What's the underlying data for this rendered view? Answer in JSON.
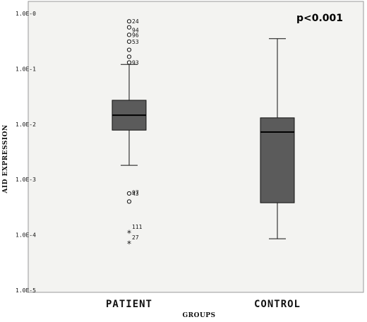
{
  "chart_data": {
    "type": "boxplot",
    "xlabel": "GROUPS",
    "ylabel": "AID EXPRESSION",
    "yscale": "log",
    "ylim": [
      1e-05,
      1
    ],
    "yticks": [
      {
        "value": 1,
        "label": "1.0E-0"
      },
      {
        "value": 0.1,
        "label": "1.0E-1"
      },
      {
        "value": 0.01,
        "label": "1.0E-2"
      },
      {
        "value": 0.001,
        "label": "1.0E-3"
      },
      {
        "value": 0.0001,
        "label": "1.0E-4"
      },
      {
        "value": 1e-05,
        "label": "1.0E-5"
      }
    ],
    "annotation": "p<0.001",
    "categories": [
      "PATIENT",
      "CONTROL"
    ],
    "boxes": [
      {
        "category": "PATIENT",
        "whisker_low": 0.0018,
        "q1": 0.0078,
        "median": 0.0145,
        "q3": 0.027,
        "whisker_high": 0.12,
        "outliers": [
          {
            "value": 0.72,
            "label": "24",
            "marker": "circle"
          },
          {
            "value": 0.56,
            "label": "",
            "marker": "circle"
          },
          {
            "value": 0.41,
            "label": "96",
            "marker": "circle"
          },
          {
            "value": 0.31,
            "label": "53",
            "marker": "circle"
          },
          {
            "value": 0.22,
            "label": "",
            "marker": "circle"
          },
          {
            "value": 0.165,
            "label": "",
            "marker": "circle"
          },
          {
            "value": 0.13,
            "label": "93",
            "marker": "circle"
          },
          {
            "value": 0.00056,
            "label": "43",
            "marker": "circle"
          },
          {
            "value": 0.0004,
            "label": "",
            "marker": "circle"
          },
          {
            "value": 0.00011,
            "label": "",
            "marker": "star"
          },
          {
            "value": 7e-05,
            "label": "",
            "marker": "star"
          }
        ],
        "extra_labels": [
          {
            "value": 0.5,
            "label": "94"
          },
          {
            "value": 0.00058,
            "label": "97"
          },
          {
            "value": 0.00014,
            "label": "111"
          },
          {
            "value": 9e-05,
            "label": "27"
          }
        ]
      },
      {
        "category": "CONTROL",
        "whisker_low": 8.5e-05,
        "q1": 0.00038,
        "median": 0.0072,
        "q3": 0.013,
        "whisker_high": 0.35,
        "outliers": [],
        "extra_labels": []
      }
    ]
  }
}
